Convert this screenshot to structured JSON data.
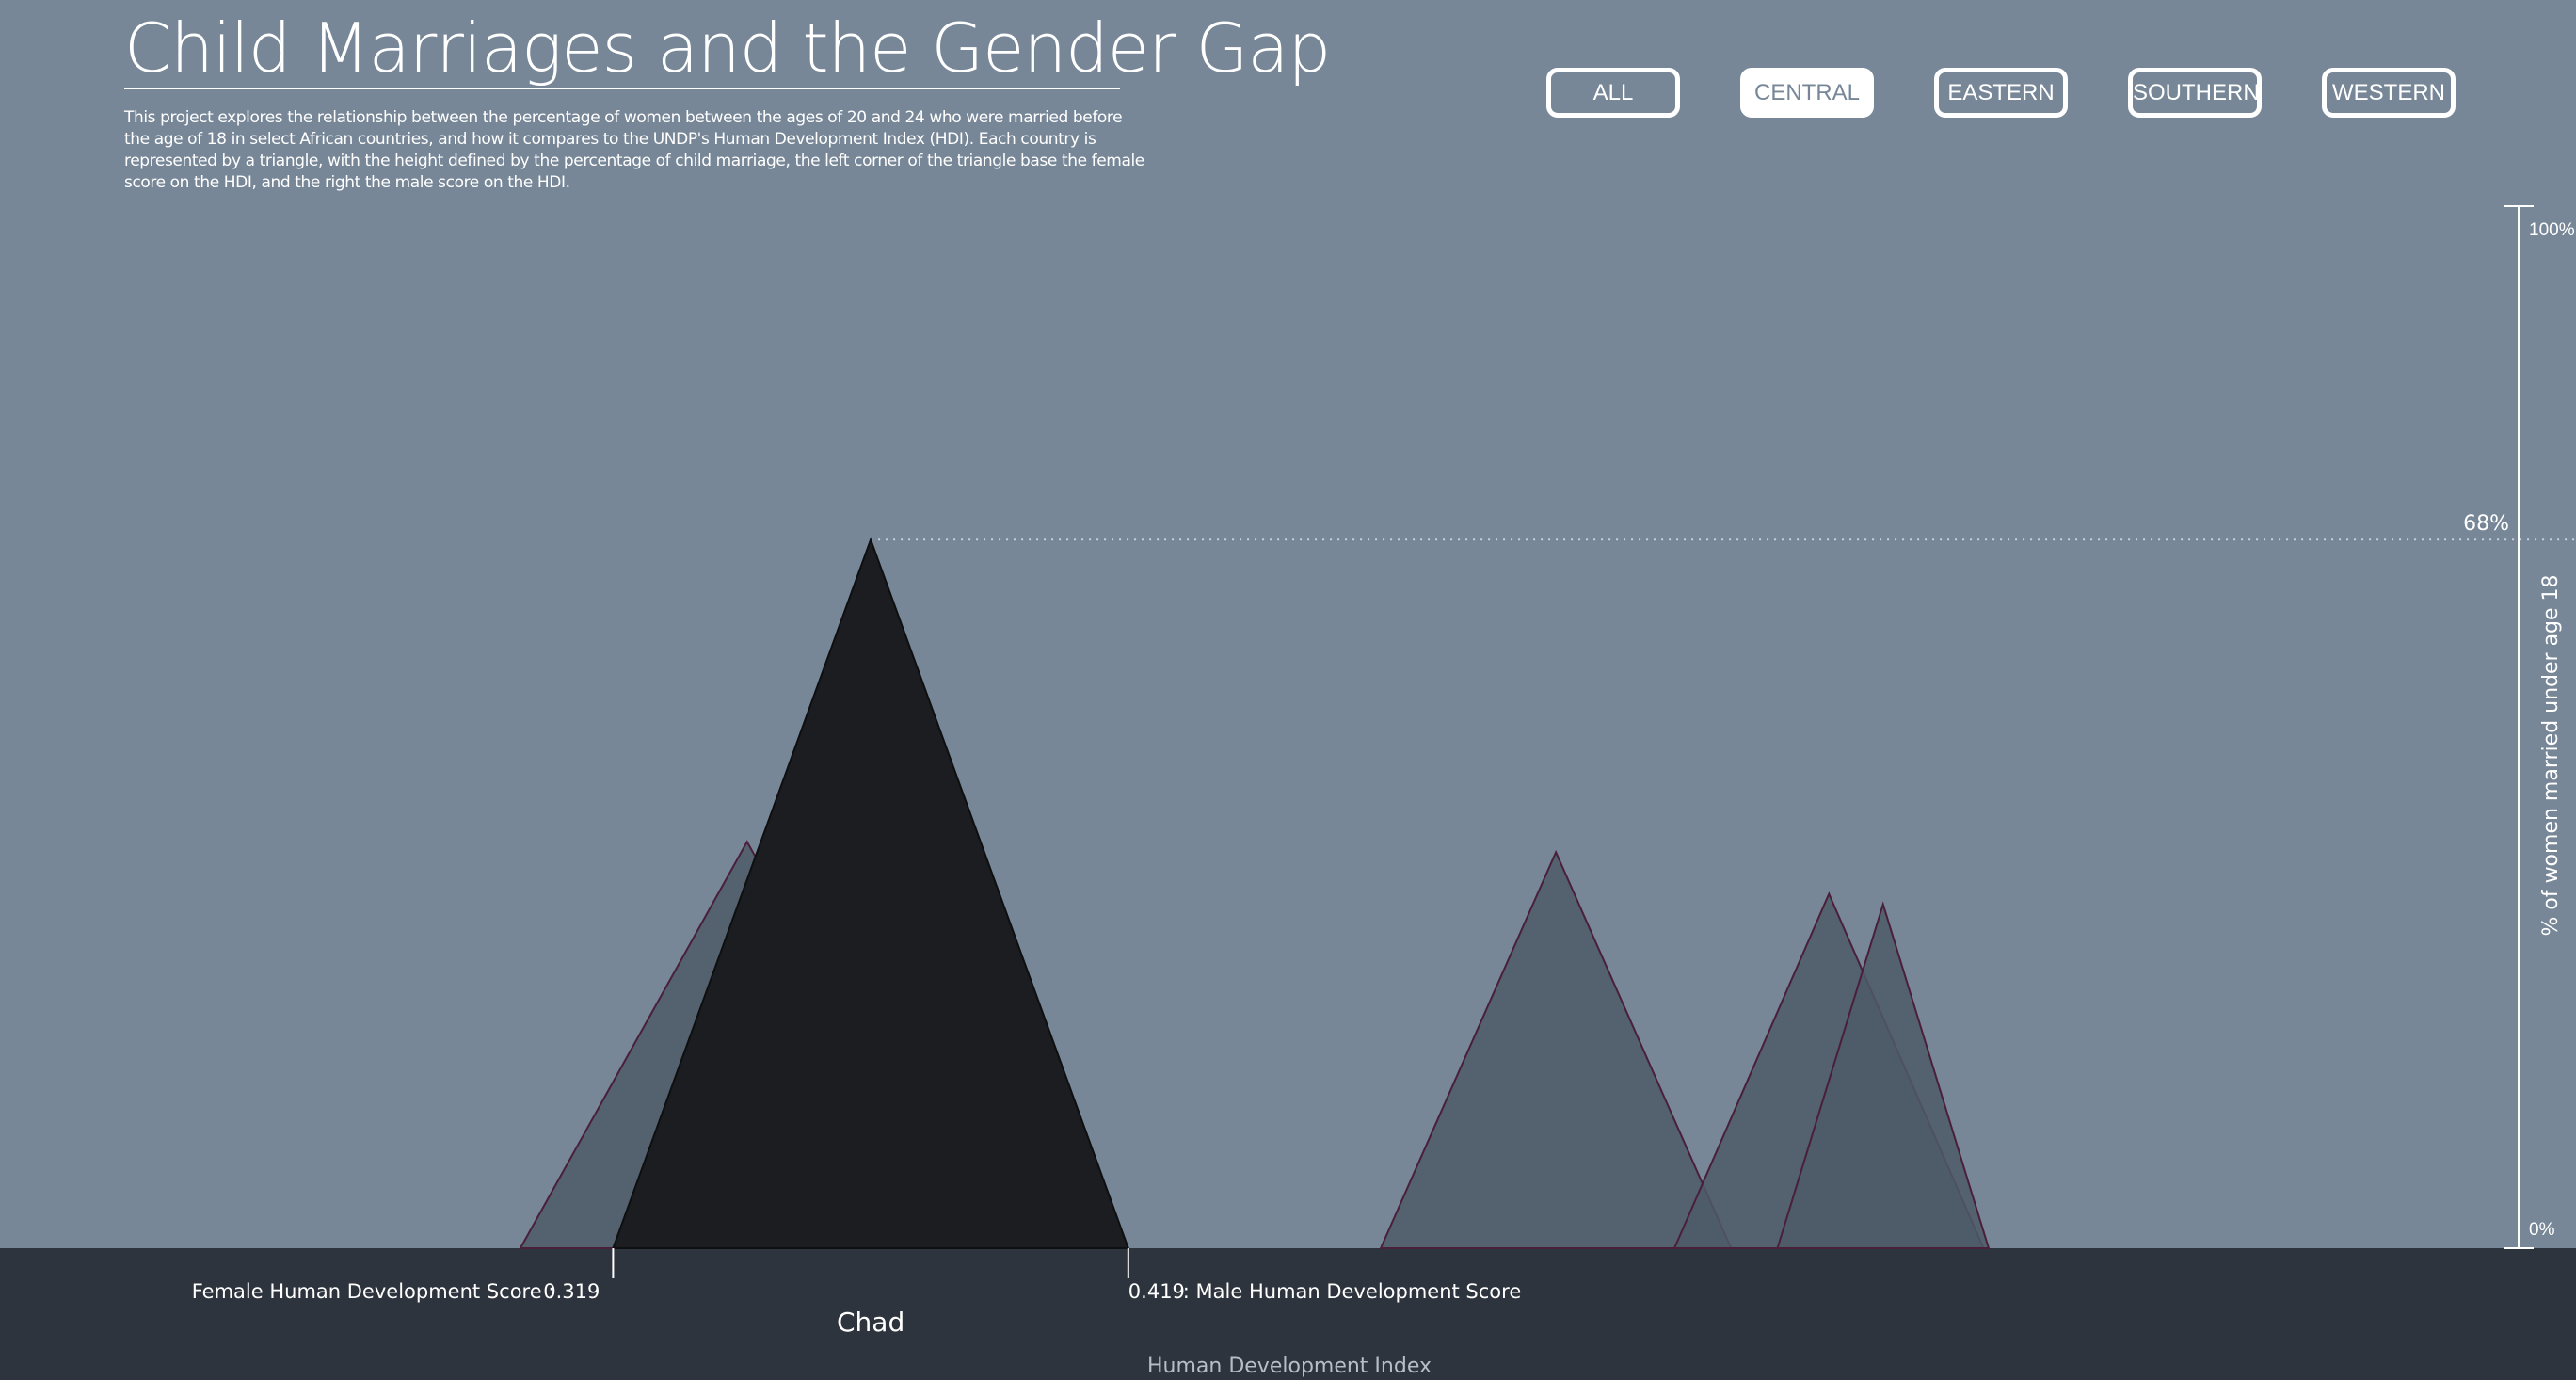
{
  "header": {
    "title": "Child Marriages and the Gender Gap",
    "description": "This project explores the relationship between the percentage of women between the ages of 20 and 24 who were married before the age of 18 in select African countries, and how it compares to the UNDP's Human Development Index (HDI). Each country is represented by a triangle, with the height defined by the percentage of child marriage, the left corner of the triangle base the female score on the HDI, and the right the male score on the HDI."
  },
  "filters": [
    {
      "label": "ALL",
      "active": false
    },
    {
      "label": "CENTRAL",
      "active": true
    },
    {
      "label": "EASTERN",
      "active": false
    },
    {
      "label": "SOUTHERN",
      "active": false
    },
    {
      "label": "WESTERN",
      "active": false
    }
  ],
  "colors": {
    "background": "#778797",
    "ground": "#2e343d",
    "triangle_fill": "#4e5a67",
    "triangle_stroke": "#4a1f3a",
    "highlight_fill": "#1b1d20",
    "text": "#ffffff"
  },
  "chart_data": {
    "type": "area",
    "xlabel": "Human Development Index",
    "ylabel": "% of women married under age 18",
    "ylim": [
      0,
      100
    ],
    "yticks": [
      "0%",
      "100%"
    ],
    "xlim": [
      0.2,
      0.7
    ],
    "series": [
      {
        "female_hdi": 0.301,
        "male_hdi": 0.389,
        "child_marriage": 39
      },
      {
        "female_hdi": 0.319,
        "male_hdi": 0.419,
        "child_marriage": 68,
        "name": "Chad",
        "highlighted": true
      },
      {
        "female_hdi": 0.468,
        "male_hdi": 0.536,
        "child_marriage": 38
      },
      {
        "female_hdi": 0.525,
        "male_hdi": 0.585,
        "child_marriage": 34
      },
      {
        "female_hdi": 0.545,
        "male_hdi": 0.586,
        "child_marriage": 33
      }
    ],
    "highlight": {
      "name": "Chad",
      "value_label": "68%",
      "female_label": "Female Human Development Score :",
      "female_value": "0.319",
      "male_label": ": Male Human Development Score",
      "male_value": "0.419"
    }
  }
}
